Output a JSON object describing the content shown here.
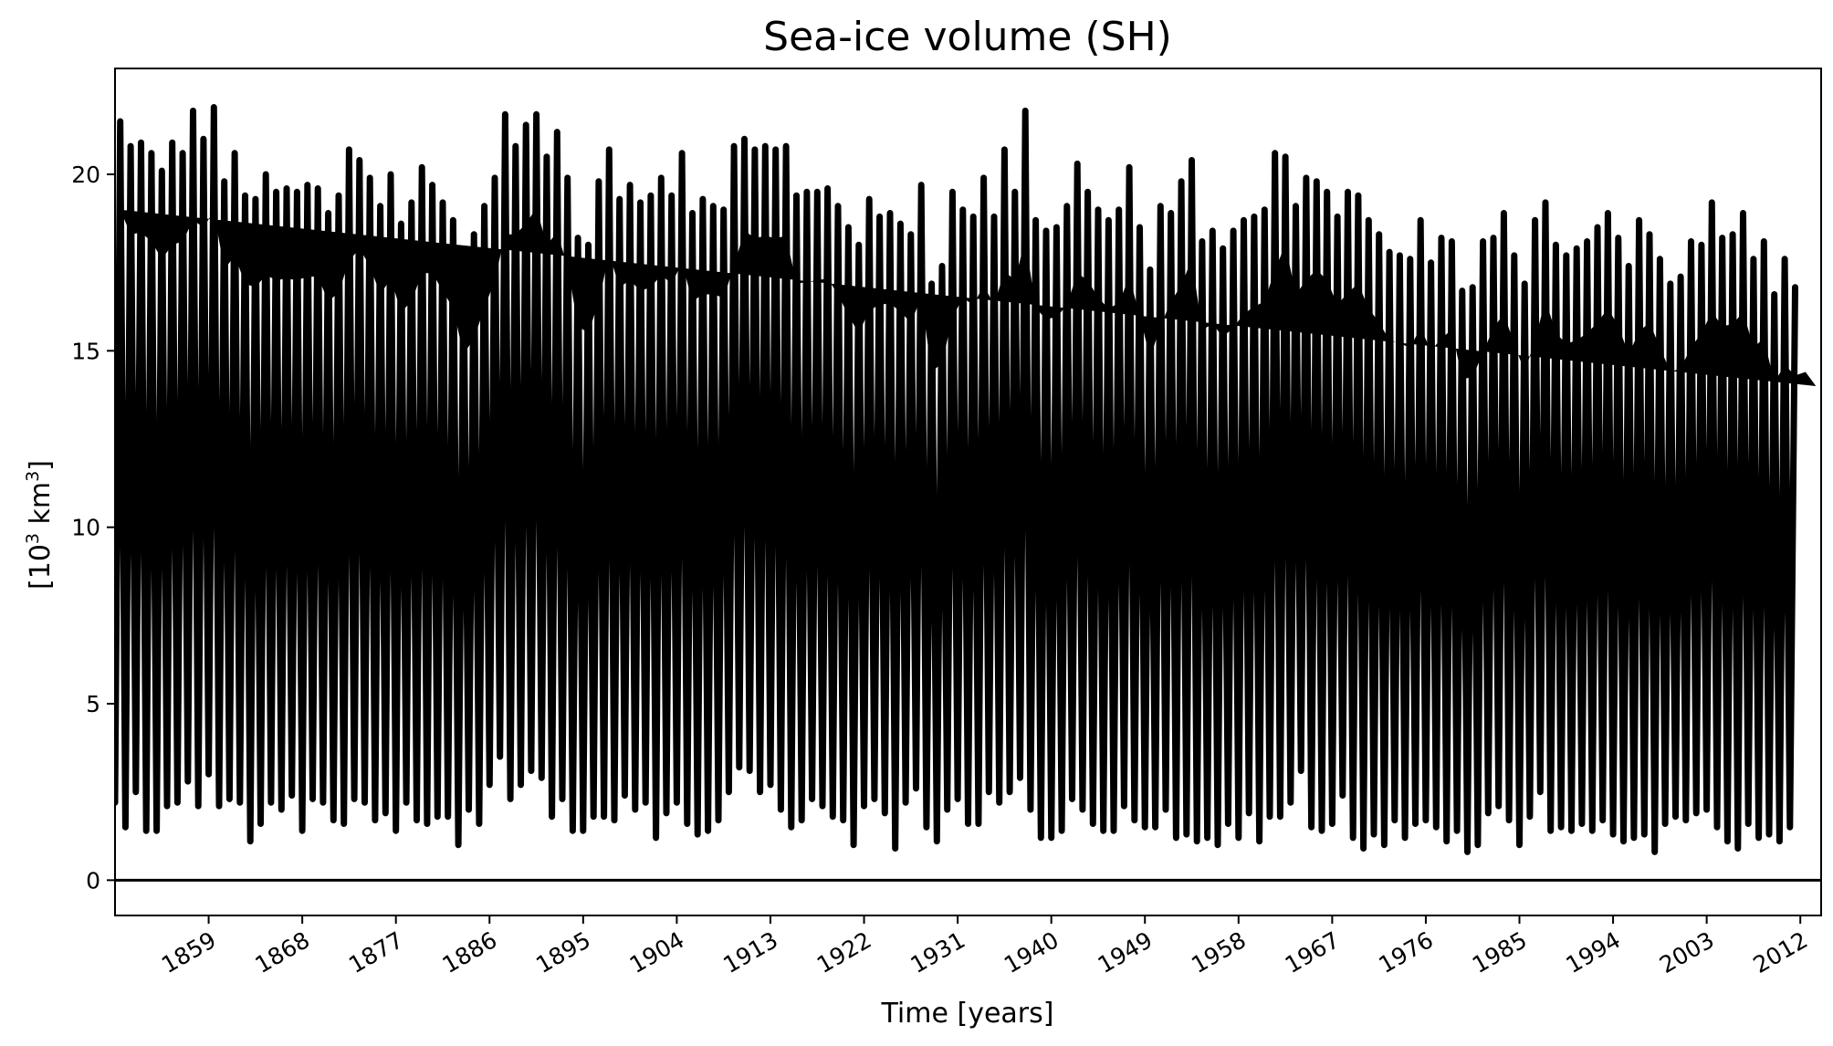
{
  "chart_data": {
    "type": "line",
    "title": "Sea-ice volume (SH)",
    "xlabel": "Time [years]",
    "ylabel_base": "[10",
    "ylabel_sup": "3",
    "ylabel_mid": " km",
    "ylabel_sup2": "3",
    "ylabel_end": "]",
    "xlim": [
      1850,
      2014
    ],
    "ylim": [
      -1,
      23
    ],
    "x_ticks": [
      1859,
      1868,
      1877,
      1886,
      1895,
      1904,
      1913,
      1922,
      1931,
      1940,
      1949,
      1958,
      1967,
      1976,
      1985,
      1994,
      2003,
      2012
    ],
    "y_ticks": [
      0,
      5,
      10,
      15,
      20
    ],
    "zero_line": 0,
    "grid": false,
    "legend": "none",
    "line_color": "#000000",
    "series": [
      {
        "x": [
          1850,
          1851,
          1852,
          1853,
          1854,
          1855,
          1856,
          1857,
          1858,
          1859,
          1860,
          1861,
          1862,
          1863,
          1864,
          1865,
          1866,
          1867,
          1868,
          1869,
          1870,
          1871,
          1872,
          1873,
          1874,
          1875,
          1876,
          1877,
          1878,
          1879,
          1880,
          1881,
          1882,
          1883,
          1884,
          1885,
          1886,
          1887,
          1888,
          1889,
          1890,
          1891,
          1892,
          1893,
          1894,
          1895,
          1896,
          1897,
          1898,
          1899,
          1900,
          1901,
          1902,
          1903,
          1904,
          1905,
          1906,
          1907,
          1908,
          1909,
          1910,
          1911,
          1912,
          1913,
          1914,
          1915,
          1916,
          1917,
          1918,
          1919,
          1920,
          1921,
          1922,
          1923,
          1924,
          1925,
          1926,
          1927,
          1928,
          1929,
          1930,
          1931,
          1932,
          1933,
          1934,
          1935,
          1936,
          1937,
          1938,
          1939,
          1940,
          1941,
          1942,
          1943,
          1944,
          1945,
          1946,
          1947,
          1948,
          1949,
          1950,
          1951,
          1952,
          1953,
          1954,
          1955,
          1956,
          1957,
          1958,
          1959,
          1960,
          1961,
          1962,
          1963,
          1964,
          1965,
          1966,
          1967,
          1968,
          1969,
          1970,
          1971,
          1972,
          1973,
          1974,
          1975,
          1976,
          1977,
          1978,
          1979,
          1980,
          1981,
          1982,
          1983,
          1984,
          1985,
          1986,
          1987,
          1988,
          1989,
          1990,
          1991,
          1992,
          1993,
          1994,
          1995,
          1996,
          1997,
          1998,
          1999,
          2000,
          2001,
          2002,
          2003,
          2004,
          2005,
          2006,
          2007,
          2008,
          2009,
          2010,
          2011,
          2012,
          2013
        ],
        "max": [
          21.5,
          20.8,
          20.9,
          20.6,
          20.1,
          20.9,
          20.6,
          21.8,
          21.0,
          21.9,
          19.8,
          20.6,
          19.4,
          19.3,
          20.0,
          19.5,
          19.6,
          19.5,
          19.7,
          19.6,
          18.9,
          19.4,
          20.7,
          20.4,
          19.9,
          19.1,
          20.0,
          18.6,
          19.2,
          20.2,
          19.7,
          19.2,
          18.7,
          17.4,
          18.3,
          19.1,
          19.9,
          21.7,
          20.8,
          21.4,
          21.7,
          20.5,
          21.2,
          19.9,
          18.2,
          18.0,
          19.8,
          20.7,
          19.3,
          19.7,
          19.2,
          19.4,
          19.9,
          19.4,
          20.6,
          18.9,
          19.3,
          19.1,
          19.0,
          20.8,
          21.0,
          20.7,
          20.8,
          20.7,
          20.8,
          19.4,
          19.5,
          19.5,
          19.6,
          19.1,
          18.5,
          18.0,
          19.3,
          18.8,
          18.9,
          18.6,
          18.3,
          19.7,
          16.9,
          17.4,
          19.5,
          19.0,
          18.8,
          19.9,
          18.8,
          20.7,
          19.5,
          21.8,
          18.7,
          18.4,
          18.5,
          19.1,
          20.3,
          19.5,
          19.0,
          18.7,
          19.0,
          20.2,
          18.5,
          17.3,
          19.1,
          18.9,
          19.8,
          20.4,
          18.1,
          18.4,
          17.9,
          18.4,
          18.7,
          18.8,
          19.0,
          20.6,
          20.5,
          19.1,
          19.9,
          19.8,
          19.5,
          18.8,
          19.5,
          19.4,
          18.7,
          18.3,
          17.8,
          17.7,
          17.6,
          18.7,
          17.5,
          18.2,
          18.1,
          16.7,
          16.8,
          18.1,
          18.2,
          18.9,
          17.7,
          16.9,
          18.7,
          19.2,
          18.0,
          17.7,
          17.9,
          18.1,
          18.5,
          18.9,
          18.2,
          17.4,
          18.7,
          18.3,
          17.6,
          16.9,
          17.1,
          18.1,
          18.0,
          19.2,
          18.2,
          18.3,
          18.9,
          17.6,
          18.1,
          16.6,
          17.6,
          16.8,
          17.0,
          16.5
        ],
        "min": [
          2.2,
          1.5,
          2.5,
          1.4,
          1.4,
          2.1,
          2.2,
          2.8,
          2.1,
          3.0,
          2.1,
          2.3,
          2.2,
          1.1,
          1.6,
          2.2,
          2.0,
          2.4,
          1.4,
          2.3,
          2.2,
          1.7,
          1.6,
          2.3,
          2.2,
          1.7,
          1.9,
          1.4,
          2.2,
          1.7,
          1.6,
          1.8,
          1.8,
          1.0,
          2.0,
          1.6,
          2.7,
          3.5,
          2.3,
          2.7,
          3.1,
          2.9,
          1.8,
          2.3,
          1.4,
          1.4,
          1.8,
          1.8,
          1.7,
          2.4,
          2.0,
          2.2,
          1.2,
          1.9,
          2.2,
          1.6,
          1.3,
          1.4,
          1.7,
          2.5,
          3.2,
          3.1,
          2.5,
          2.7,
          2.0,
          1.5,
          1.7,
          2.3,
          2.1,
          1.8,
          1.7,
          1.0,
          2.1,
          2.3,
          1.9,
          0.9,
          2.2,
          2.6,
          1.5,
          1.1,
          2.0,
          2.3,
          1.6,
          1.6,
          2.5,
          2.2,
          2.5,
          2.9,
          2.0,
          1.2,
          1.2,
          1.4,
          2.3,
          2.0,
          1.6,
          1.4,
          1.4,
          2.1,
          1.7,
          1.5,
          1.5,
          2.0,
          1.2,
          1.3,
          1.1,
          1.2,
          1.0,
          1.6,
          1.2,
          1.9,
          1.1,
          1.8,
          1.8,
          2.2,
          3.1,
          1.5,
          1.4,
          1.6,
          2.4,
          1.2,
          0.9,
          1.3,
          1.0,
          1.7,
          1.2,
          1.6,
          1.7,
          1.5,
          1.1,
          1.4,
          0.8,
          1.0,
          1.9,
          2.1,
          1.7,
          1.0,
          1.8,
          2.5,
          1.4,
          1.5,
          1.4,
          1.6,
          1.4,
          1.7,
          1.3,
          1.1,
          1.2,
          1.3,
          0.8,
          1.6,
          1.8,
          1.7,
          1.9,
          2.0,
          1.5,
          1.1,
          0.9,
          1.6,
          1.2,
          1.3,
          1.1,
          1.5
        ]
      }
    ]
  }
}
